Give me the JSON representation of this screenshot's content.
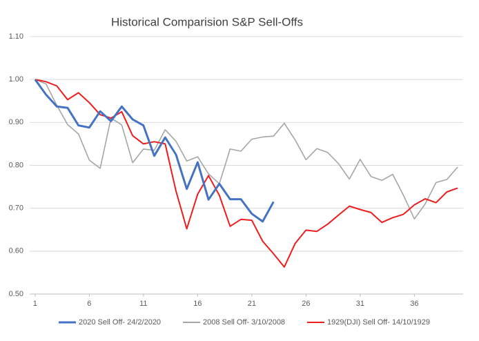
{
  "chart_data": {
    "type": "line",
    "title": "Historical Comparision S&P Sell-Offs",
    "x": [
      1,
      2,
      3,
      4,
      5,
      6,
      7,
      8,
      9,
      10,
      11,
      12,
      13,
      14,
      15,
      16,
      17,
      18,
      19,
      20,
      21,
      22,
      23,
      24,
      25,
      26,
      27,
      28,
      29,
      30,
      31,
      32,
      33,
      34,
      35,
      36,
      37,
      38,
      39,
      40
    ],
    "series": [
      {
        "name": "2020 Sell Off- 24/2/2020",
        "color": "#4472c4",
        "values": [
          1.0,
          0.965,
          0.937,
          0.934,
          0.893,
          0.888,
          0.926,
          0.903,
          0.937,
          0.907,
          0.893,
          0.822,
          0.865,
          0.825,
          0.745,
          0.807,
          0.72,
          0.757,
          0.721,
          0.721,
          0.687,
          0.669,
          0.715,
          null,
          null,
          null,
          null,
          null,
          null,
          null,
          null,
          null,
          null,
          null,
          null,
          null,
          null,
          null,
          null,
          null
        ]
      },
      {
        "name": "2008 Sell Off- 3/10/2008",
        "color": "#a5a5a5",
        "values": [
          1.0,
          0.99,
          0.94,
          0.895,
          0.873,
          0.812,
          0.793,
          0.91,
          0.894,
          0.806,
          0.838,
          0.835,
          0.883,
          0.856,
          0.81,
          0.82,
          0.78,
          0.757,
          0.838,
          0.833,
          0.861,
          0.866,
          0.868,
          0.898,
          0.859,
          0.813,
          0.839,
          0.83,
          0.804,
          0.768,
          0.814,
          0.774,
          0.765,
          0.779,
          0.73,
          0.675,
          0.71,
          0.76,
          0.767,
          0.796
        ]
      },
      {
        "name": "1929(DJI) Sell Off- 14/10/1929",
        "color": "#ee1c1c",
        "values": [
          1.0,
          0.995,
          0.985,
          0.953,
          0.969,
          0.946,
          0.918,
          0.91,
          0.925,
          0.869,
          0.85,
          0.855,
          0.85,
          0.74,
          0.652,
          0.733,
          0.776,
          0.73,
          0.658,
          0.674,
          0.672,
          0.623,
          0.594,
          0.563,
          0.618,
          0.649,
          0.646,
          0.663,
          0.684,
          0.705,
          0.697,
          0.69,
          0.667,
          0.678,
          0.686,
          0.708,
          0.722,
          0.713,
          0.738,
          0.747
        ]
      }
    ],
    "xlim": [
      0.5,
      40.5
    ],
    "xticks": [
      1,
      6,
      11,
      16,
      21,
      26,
      31,
      36
    ],
    "ylim": [
      0.5,
      1.1
    ],
    "yticks": [
      {
        "value": 0.5,
        "label": "0.50"
      },
      {
        "value": 0.6,
        "label": "0.60"
      },
      {
        "value": 0.7,
        "label": "0.70"
      },
      {
        "value": 0.8,
        "label": "0.80"
      },
      {
        "value": 0.9,
        "label": "0.90"
      },
      {
        "value": 1.0,
        "label": "1.00"
      },
      {
        "value": 1.1,
        "label": "1.10"
      }
    ],
    "grid": true,
    "legend": "bottom"
  }
}
